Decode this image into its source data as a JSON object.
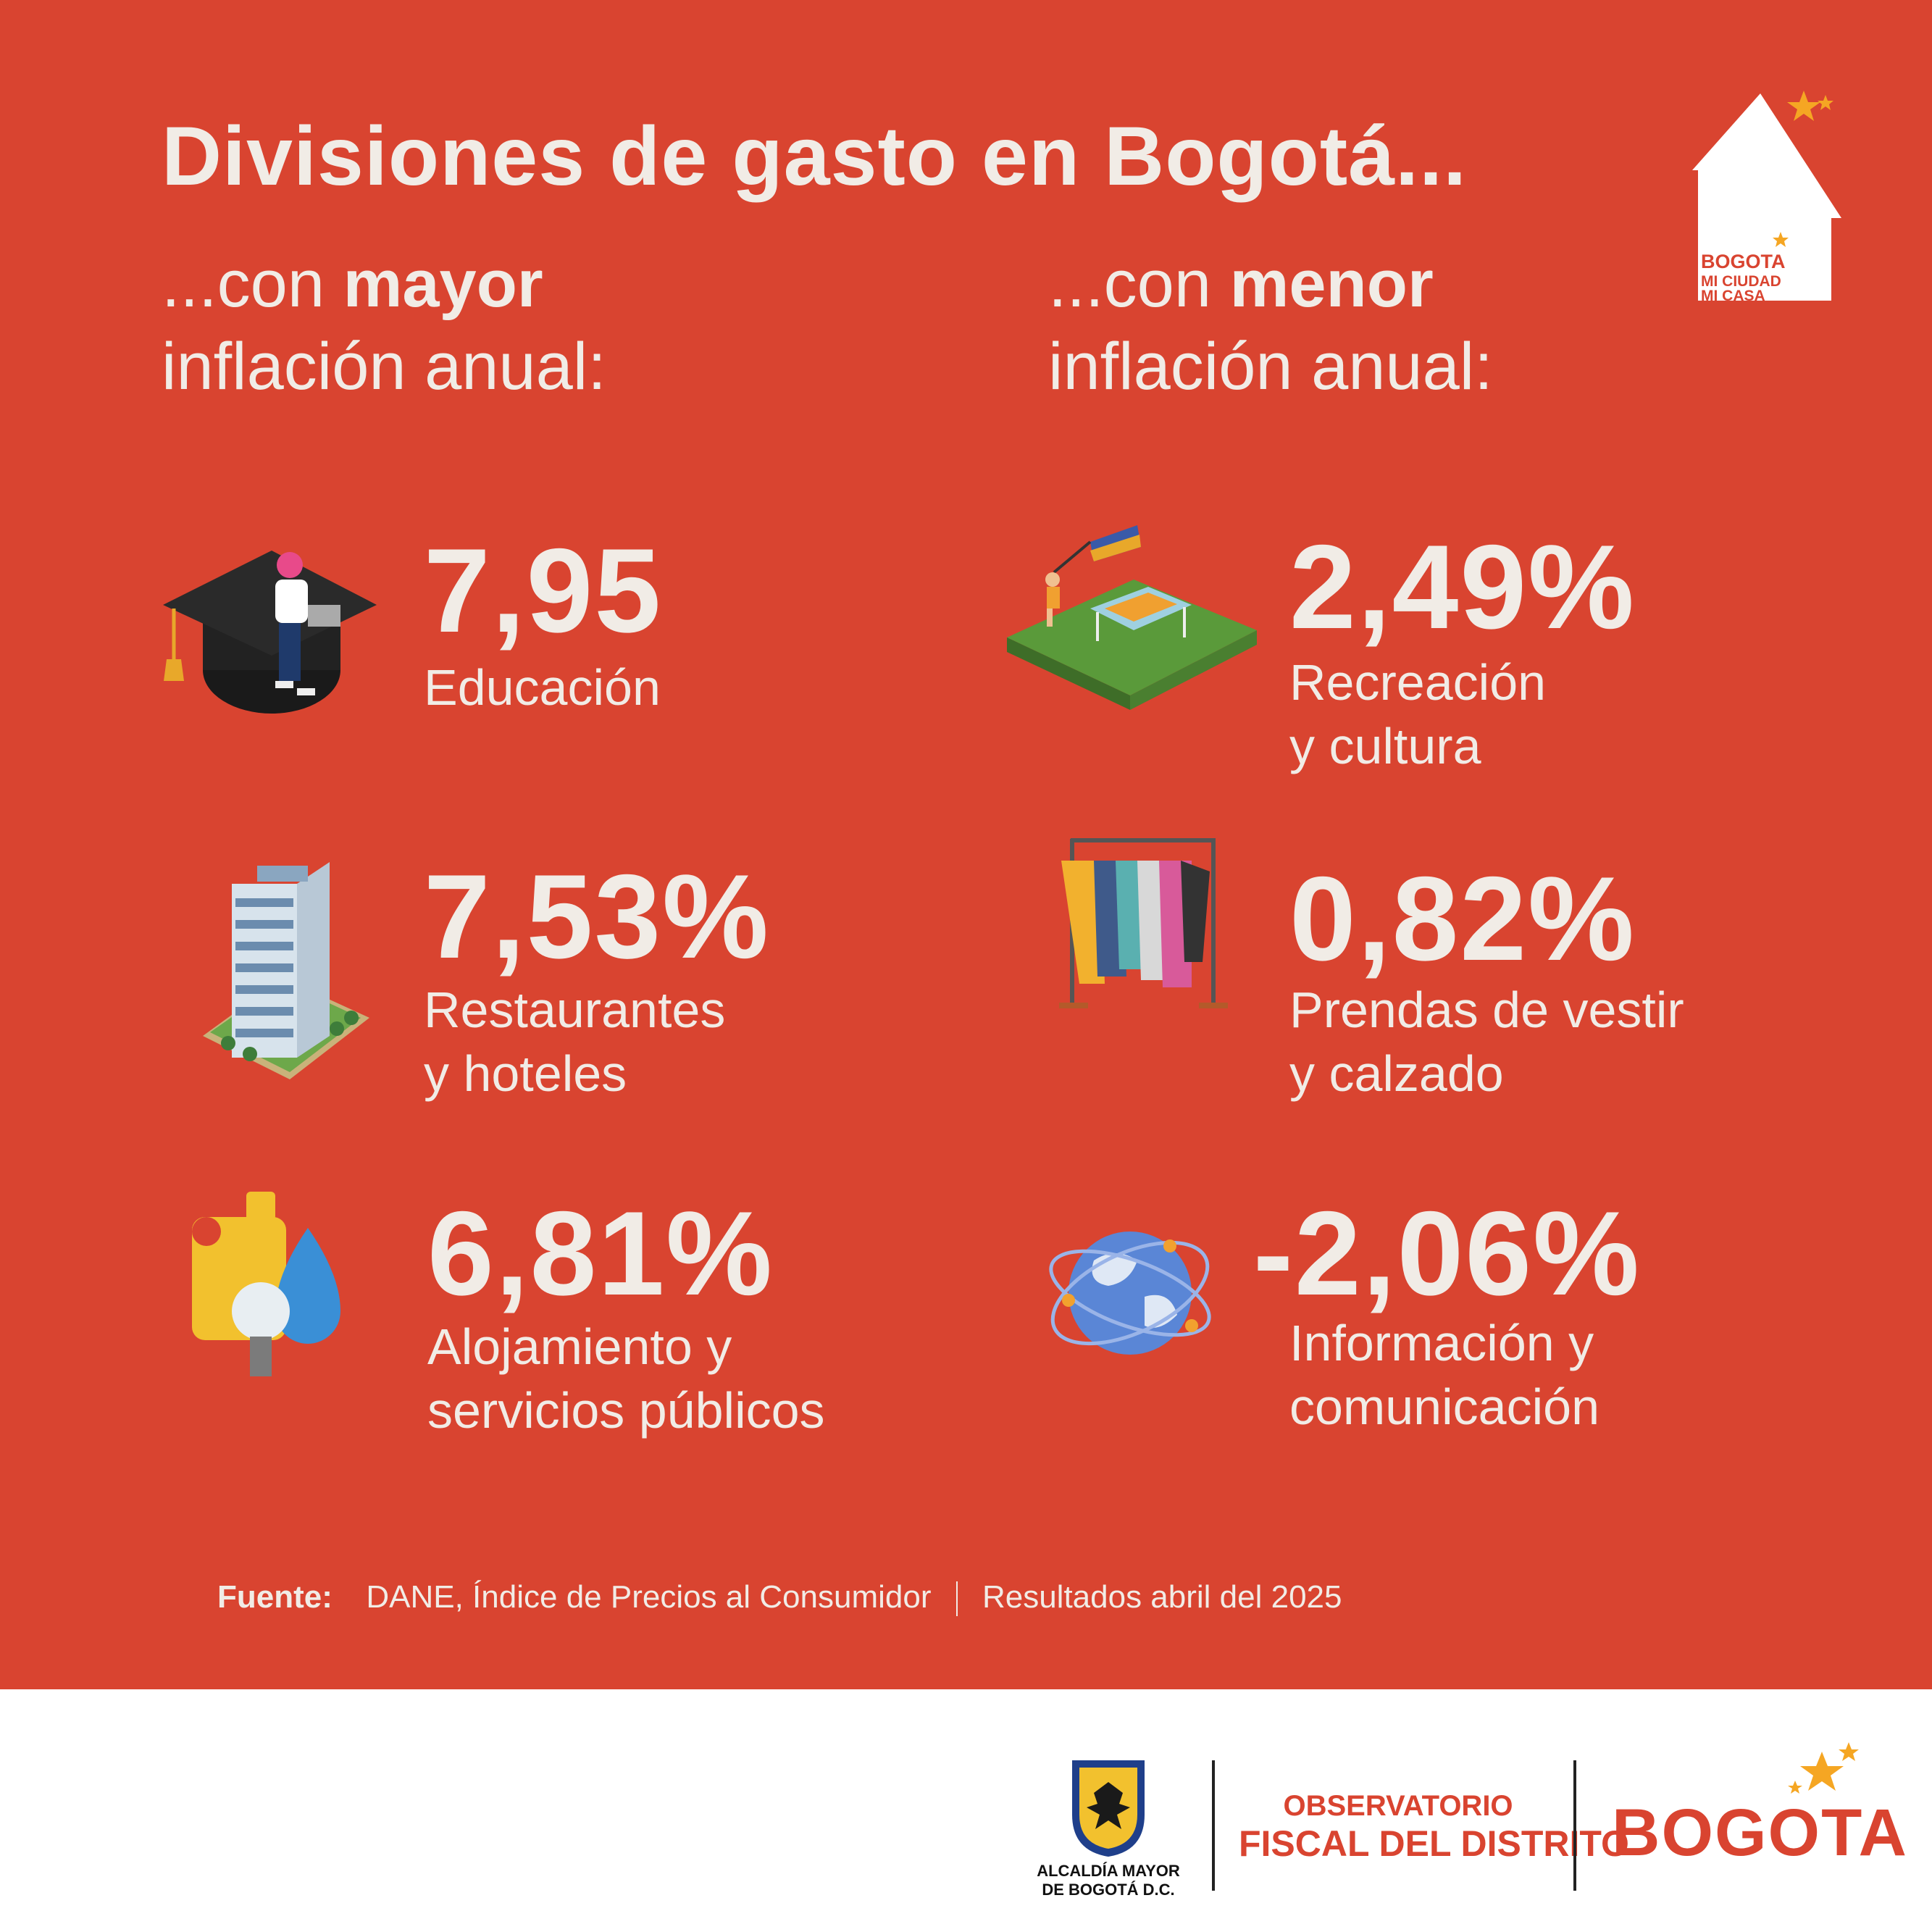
{
  "header": {
    "title": "Divisiones de gasto en Bogotá...",
    "left_heading": {
      "prefix": "...con ",
      "bold": "mayor",
      "line2": "inflación anual:"
    },
    "right_heading": {
      "prefix": "...con ",
      "bold": "menor",
      "line2": "inflación anual:"
    }
  },
  "logo_house": {
    "line1": "BOGOTA",
    "line2": "MI CIUDAD",
    "line3": "MI CASA"
  },
  "mayor_items": [
    {
      "value": "7,95",
      "label_lines": [
        "Educación"
      ],
      "icon": "graduation-cap-icon"
    },
    {
      "value": "7,53%",
      "label_lines": [
        "Restaurantes",
        "y hoteles"
      ],
      "icon": "hotel-building-icon"
    },
    {
      "value": "6,81%",
      "label_lines": [
        "Alojamiento y",
        "servicios públicos"
      ],
      "icon": "utilities-icon"
    }
  ],
  "menor_items": [
    {
      "value": "2,49%",
      "label_lines": [
        "Recreación",
        "y cultura"
      ],
      "icon": "park-recreation-icon"
    },
    {
      "value": "0,82%",
      "label_lines": [
        "Prendas de vestir",
        "y calzado"
      ],
      "icon": "clothing-rack-icon"
    },
    {
      "value": "-2,06%",
      "label_lines": [
        "Información y",
        "comunicación"
      ],
      "icon": "globe-network-icon"
    }
  ],
  "source": {
    "label": "Fuente:",
    "text": "DANE, Índice de Precios al Consumidor",
    "date": "Resultados abril del 2025"
  },
  "footer": {
    "alcaldia_line1": "ALCALDÍA MAYOR",
    "alcaldia_line2": "DE BOGOTÁ D.C.",
    "observatorio_line1": "OBSERVATORIO",
    "observatorio_line2": "FISCAL DEL DISTRITO",
    "bogota_logo": "BOGOTA"
  },
  "colors": {
    "background": "#d94430",
    "text": "#f1ece6",
    "footer_bg": "#ffffff",
    "star": "#f5a623"
  }
}
